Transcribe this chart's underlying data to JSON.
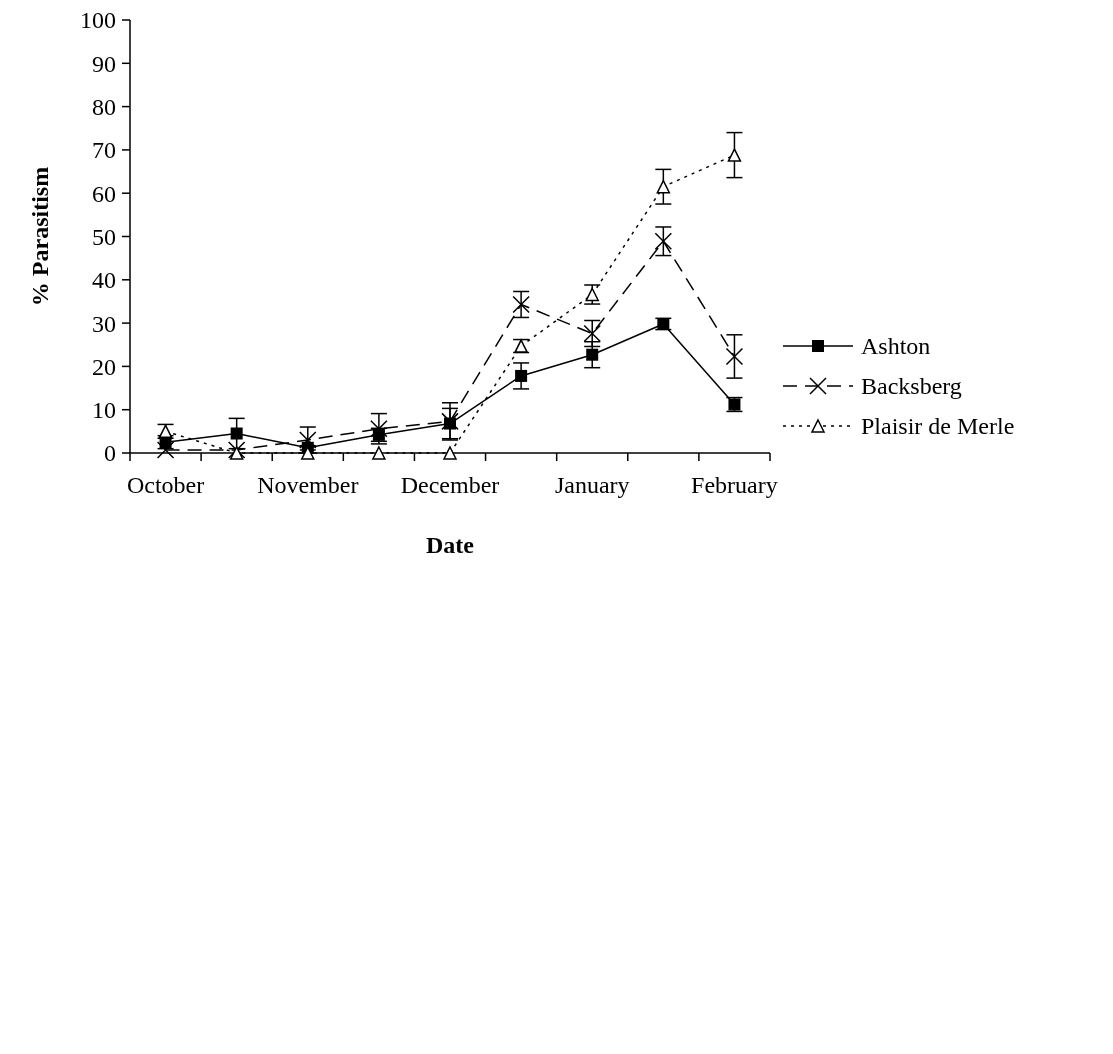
{
  "chart_data": {
    "type": "line",
    "xlabel": "Date",
    "ylabel": "% Parasitism",
    "categories": [
      "October",
      null,
      "November",
      null,
      "December",
      null,
      "January",
      null,
      "February"
    ],
    "ylim": [
      0,
      100
    ],
    "yticks": [
      0,
      10,
      20,
      30,
      40,
      50,
      60,
      70,
      80,
      90,
      100
    ],
    "grid": false,
    "legend": "right",
    "series": [
      {
        "name": "Ashton",
        "color": "#000000",
        "marker": "square",
        "line_style": "solid",
        "values": [
          2.5,
          4.5,
          1.2,
          4.2,
          6.8,
          17.8,
          22.7,
          29.8,
          11.2
        ],
        "errors": [
          1.5,
          3.5,
          0.5,
          1.5,
          3.5,
          3,
          3,
          1.3,
          1.6
        ]
      },
      {
        "name": "Backsberg",
        "color": "#000000",
        "marker": "cross",
        "line_style": "dashed",
        "values": [
          0.7,
          0.7,
          3,
          5.6,
          7.3,
          34.3,
          27.6,
          48.9,
          22.3
        ],
        "errors": [
          null,
          null,
          3,
          3.5,
          4.3,
          3,
          3,
          3.3,
          5
        ]
      },
      {
        "name": "Plaisir de Merle",
        "color": "#000000",
        "marker": "triangle",
        "line_style": "dotted",
        "values": [
          5,
          0,
          0,
          0,
          0,
          24.7,
          36.6,
          61.5,
          68.8
        ],
        "errors": [
          1.6,
          null,
          null,
          null,
          null,
          1.5,
          2.2,
          4,
          5.2
        ]
      }
    ]
  }
}
